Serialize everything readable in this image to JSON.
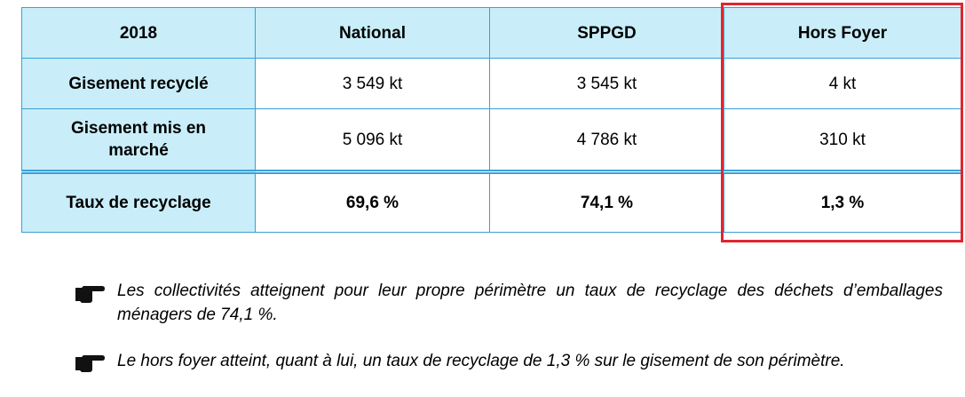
{
  "table": {
    "headers": [
      "2018",
      "National",
      "SPPGD",
      "Hors Foyer"
    ],
    "rows": [
      {
        "label": "Gisement recyclé",
        "values": [
          "3 549 kt",
          "3 545 kt",
          "4 kt"
        ]
      },
      {
        "label": "Gisement mis en marché",
        "values": [
          "5 096 kt",
          "4 786 kt",
          "310 kt"
        ]
      },
      {
        "label": "Taux de recyclage",
        "values": [
          "69,6 %",
          "74,1 %",
          "1,3 %"
        ]
      }
    ],
    "highlight_color": "#e0262f",
    "header_bg": "#c9eef9",
    "border_color": "#3aa0d6"
  },
  "notes": [
    {
      "icon": "pointing-hand-icon",
      "text": "Les collectivités atteignent pour leur propre périmètre un taux de recyclage des déchets d’emballages ménagers de 74,1 %."
    },
    {
      "icon": "pointing-hand-icon",
      "text": "Le hors foyer atteint, quant à lui, un taux de recyclage de 1,3 % sur le gisement de son périmètre."
    }
  ]
}
